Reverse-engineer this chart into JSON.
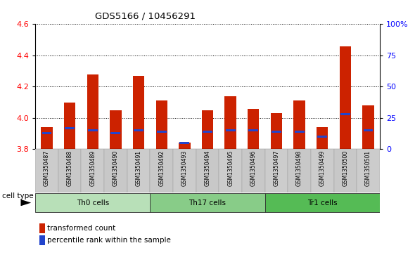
{
  "title": "GDS5166 / 10456291",
  "samples": [
    "GSM1350487",
    "GSM1350488",
    "GSM1350489",
    "GSM1350490",
    "GSM1350491",
    "GSM1350492",
    "GSM1350493",
    "GSM1350494",
    "GSM1350495",
    "GSM1350496",
    "GSM1350497",
    "GSM1350498",
    "GSM1350499",
    "GSM1350500",
    "GSM1350501"
  ],
  "transformed_count": [
    3.94,
    4.1,
    4.28,
    4.05,
    4.27,
    4.11,
    3.84,
    4.05,
    4.14,
    4.06,
    4.03,
    4.11,
    3.94,
    4.46,
    4.08
  ],
  "percentile_rank": [
    13,
    17,
    15,
    13,
    15,
    14,
    5,
    14,
    15,
    15,
    14,
    14,
    10,
    28,
    15
  ],
  "cell_groups": [
    {
      "label": "Th0 cells",
      "start": 0,
      "end": 5,
      "color": "#b8e0b8"
    },
    {
      "label": "Th17 cells",
      "start": 5,
      "end": 10,
      "color": "#88cc88"
    },
    {
      "label": "Tr1 cells",
      "start": 10,
      "end": 15,
      "color": "#55bb55"
    }
  ],
  "bar_color": "#cc2200",
  "percentile_color": "#2244cc",
  "ylim_left": [
    3.8,
    4.6
  ],
  "ylim_right": [
    0,
    100
  ],
  "yticks_left": [
    3.8,
    4.0,
    4.2,
    4.4,
    4.6
  ],
  "yticks_right": [
    0,
    25,
    50,
    75,
    100
  ],
  "ytick_right_labels": [
    "0",
    "25",
    "50",
    "75",
    "100%"
  ],
  "legend_items": [
    {
      "label": "transformed count",
      "color": "#cc2200"
    },
    {
      "label": "percentile rank within the sample",
      "color": "#2244cc"
    }
  ],
  "cell_type_label": "cell type",
  "bar_width": 0.5
}
